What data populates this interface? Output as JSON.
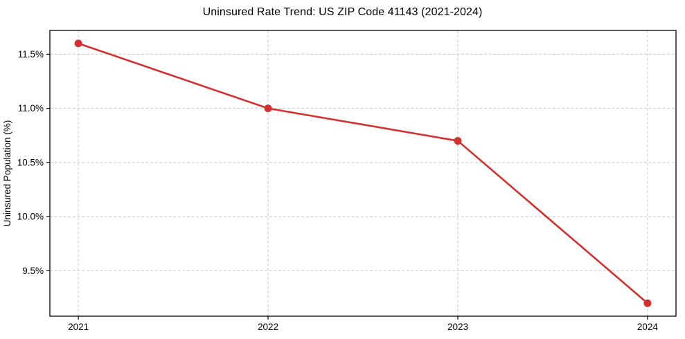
{
  "figure": {
    "title": "Uninsured Rate Trend: US ZIP Code 41143 (2021-2024)"
  },
  "chart_data": {
    "type": "line",
    "title": "Uninsured Rate Trend: US ZIP Code 41143 (2021-2024)",
    "xlabel": "",
    "ylabel": "Uninsured Population (%)",
    "x": [
      2021,
      2022,
      2023,
      2024
    ],
    "x_tick_labels": [
      "2021",
      "2022",
      "2023",
      "2024"
    ],
    "series": [
      {
        "name": "Uninsured rate",
        "values": [
          11.6,
          11.0,
          10.7,
          9.2
        ],
        "color": "#d32f2e",
        "marker": "circle"
      }
    ],
    "y_ticks": [
      9.5,
      10.0,
      10.5,
      11.0,
      11.5
    ],
    "y_tick_labels": [
      "9.5%",
      "10.0%",
      "10.5%",
      "11.0%",
      "11.5%"
    ],
    "ylim": [
      9.08,
      11.72
    ],
    "xlim": [
      2020.85,
      2024.15
    ],
    "grid": true,
    "grid_style": "dashed",
    "grid_color": "#c7c7c7",
    "axis_color": "#000000",
    "legend": false
  }
}
